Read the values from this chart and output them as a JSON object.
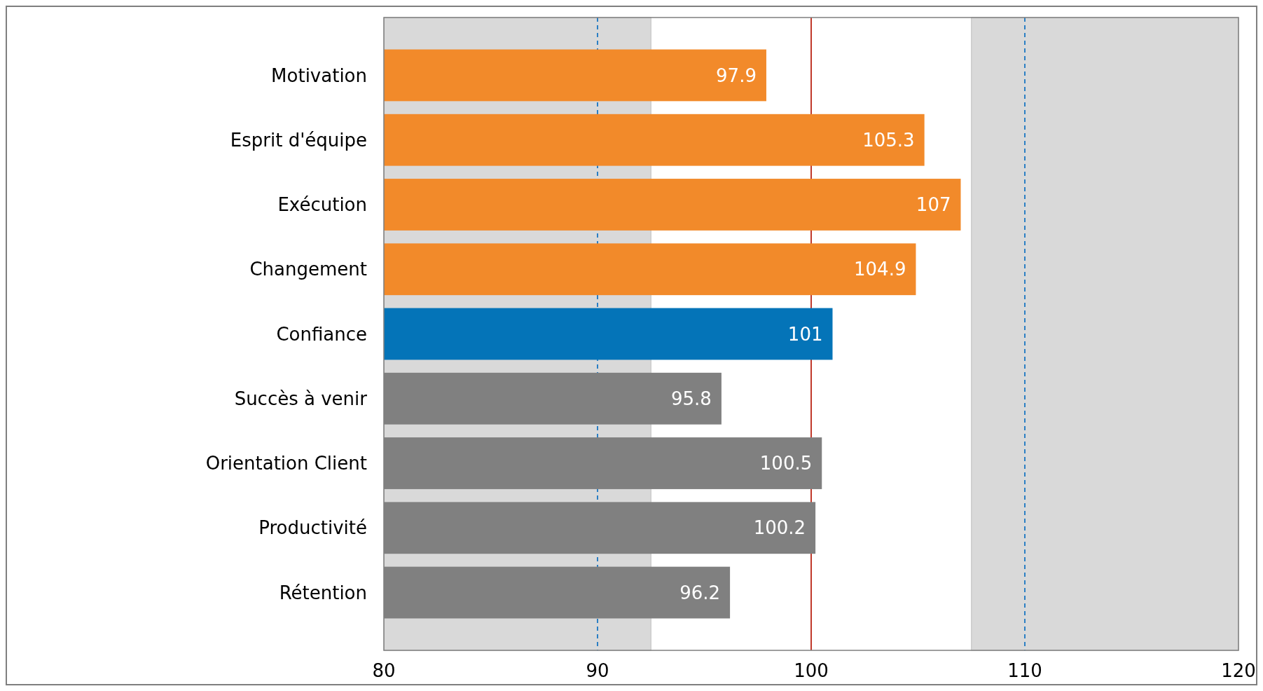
{
  "chart_data": {
    "type": "bar",
    "orientation": "horizontal",
    "categories": [
      "Motivation",
      "Esprit d'équipe",
      "Exécution",
      "Changement",
      "Confiance",
      "Succès à venir",
      "Orientation Client",
      "Productivité",
      "Rétention"
    ],
    "values": [
      97.9,
      105.3,
      107,
      104.9,
      101,
      95.8,
      100.5,
      100.2,
      96.2
    ],
    "colors": [
      "#f28a2a",
      "#f28a2a",
      "#f28a2a",
      "#f28a2a",
      "#0474b8",
      "#808080",
      "#808080",
      "#808080",
      "#808080"
    ],
    "xlim": [
      80,
      120
    ],
    "xticks": [
      80,
      90,
      100,
      110,
      120
    ],
    "data_labels": true,
    "bands": [
      {
        "axis": "x",
        "from": 80,
        "to": 92.5,
        "color": "#d9d9d9"
      },
      {
        "axis": "x",
        "from": 107.5,
        "to": 120,
        "color": "#d9d9d9"
      }
    ],
    "ref_lines": [
      {
        "axis": "x",
        "value": 90,
        "color": "#2b7fc4",
        "line_style": "dashed"
      },
      {
        "axis": "x",
        "value": 100,
        "color": "#c0392b",
        "line_style": "solid"
      },
      {
        "axis": "x",
        "value": 110,
        "color": "#2b7fc4",
        "line_style": "dashed"
      }
    ]
  }
}
